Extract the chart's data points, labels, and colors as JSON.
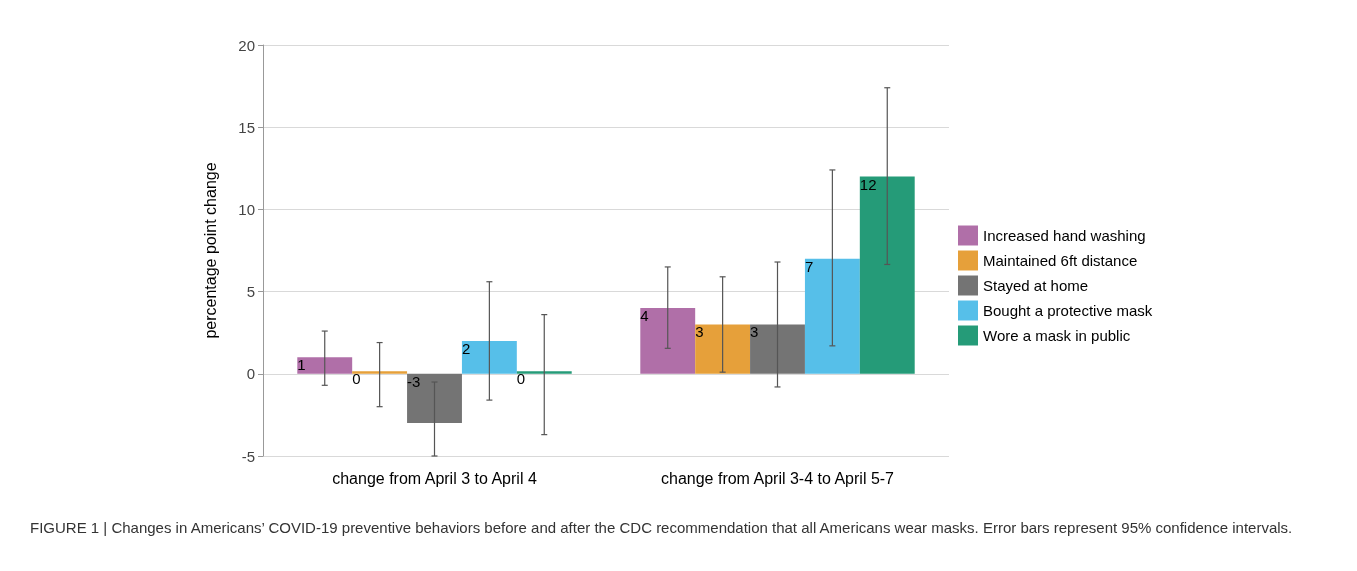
{
  "chart_data": {
    "type": "bar",
    "ylabel": "percentage point change",
    "categories": [
      "change from April 3 to April 4",
      "change from April 3-4 to April 5-7"
    ],
    "series": [
      {
        "name": "Increased hand washing",
        "color": "#b06fa8",
        "values": [
          1,
          4
        ],
        "value_labels": [
          "1",
          "4"
        ],
        "errors": [
          [
            -0.7,
            2.6
          ],
          [
            1.55,
            6.5
          ]
        ]
      },
      {
        "name": "Maintained 6ft distance",
        "color": "#e6a03a",
        "values": [
          0.15,
          3
        ],
        "value_labels": [
          "0",
          "3"
        ],
        "errors": [
          [
            -2,
            1.9
          ],
          [
            0.1,
            5.9
          ]
        ]
      },
      {
        "name": "Stayed at home",
        "color": "#747474",
        "values": [
          -3,
          3
        ],
        "value_labels": [
          "-3",
          "3"
        ],
        "errors": [
          [
            -5,
            -0.5
          ],
          [
            -0.8,
            6.8
          ]
        ]
      },
      {
        "name": "Bought a protective mask",
        "color": "#56bfe9",
        "values": [
          2,
          7
        ],
        "value_labels": [
          "2",
          "7"
        ],
        "errors": [
          [
            -1.6,
            5.6
          ],
          [
            1.7,
            12.4
          ]
        ]
      },
      {
        "name": "Wore a mask in public",
        "color": "#259b78",
        "values": [
          0.15,
          12
        ],
        "value_labels": [
          "0",
          "12"
        ],
        "errors": [
          [
            -3.7,
            3.6
          ],
          [
            6.65,
            17.4
          ]
        ]
      }
    ],
    "ylim": [
      -5,
      20
    ],
    "yticks": [
      -5,
      0,
      5,
      10,
      15,
      20
    ],
    "grid": "y",
    "legend": "right",
    "annotations": [
      "FIGURE 1 | Changes in Americans’ COVID-19 preventive behaviors before and after the CDC recommendation that all Americans wear masks. Error bars represent 95% confidence intervals."
    ]
  }
}
